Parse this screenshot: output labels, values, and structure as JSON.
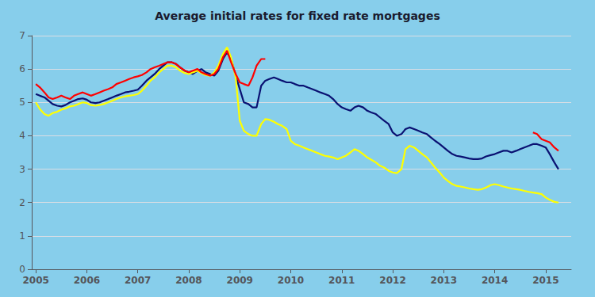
{
  "chart_data": {
    "type": "line",
    "title": "Average initial rates for fixed rate mortgages",
    "xlim": [
      2004.92,
      2015.5
    ],
    "xticks": [
      2005,
      2006,
      2007,
      2008,
      2009,
      2010,
      2011,
      2012,
      2013,
      2014,
      2015
    ],
    "ylim": [
      0,
      7
    ],
    "yticks": [
      0,
      1,
      2,
      3,
      4,
      5,
      6,
      7
    ],
    "grid": true,
    "series": [
      {
        "color": "#0a1172",
        "x": [
          2005.0,
          2005.08,
          2005.17,
          2005.25,
          2005.33,
          2005.42,
          2005.5,
          2005.58,
          2005.67,
          2005.75,
          2005.83,
          2005.92,
          2006.0,
          2006.08,
          2006.17,
          2006.25,
          2006.33,
          2006.42,
          2006.5,
          2006.58,
          2006.67,
          2006.75,
          2006.83,
          2006.92,
          2007.0,
          2007.08,
          2007.17,
          2007.25,
          2007.33,
          2007.42,
          2007.5,
          2007.58,
          2007.67,
          2007.75,
          2007.83,
          2007.92,
          2008.0,
          2008.08,
          2008.17,
          2008.25,
          2008.33,
          2008.42,
          2008.5,
          2008.58,
          2008.67,
          2008.75,
          2008.83,
          2008.92,
          2009.0,
          2009.08,
          2009.17,
          2009.25,
          2009.33,
          2009.42,
          2009.5,
          2009.58,
          2009.67,
          2009.75,
          2009.83,
          2009.92,
          2010.0,
          2010.08,
          2010.17,
          2010.25,
          2010.33,
          2010.42,
          2010.5,
          2010.58,
          2010.67,
          2010.75,
          2010.83,
          2010.92,
          2011.0,
          2011.08,
          2011.17,
          2011.25,
          2011.33,
          2011.42,
          2011.5,
          2011.58,
          2011.67,
          2011.75,
          2011.83,
          2011.92,
          2012.0,
          2012.08,
          2012.17,
          2012.25,
          2012.33,
          2012.42,
          2012.5,
          2012.58,
          2012.67,
          2012.75,
          2012.83,
          2012.92,
          2013.0,
          2013.08,
          2013.17,
          2013.25,
          2013.33,
          2013.42,
          2013.5,
          2013.58,
          2013.67,
          2013.75,
          2013.83,
          2013.92,
          2014.0,
          2014.08,
          2014.17,
          2014.25,
          2014.33,
          2014.42,
          2014.5,
          2014.58,
          2014.67,
          2014.75,
          2014.83,
          2014.92,
          2015.0,
          2015.08,
          2015.17,
          2015.25
        ],
        "values": [
          5.25,
          5.2,
          5.15,
          5.05,
          4.95,
          4.9,
          4.88,
          4.92,
          5.0,
          5.05,
          5.1,
          5.12,
          5.08,
          5.0,
          4.98,
          5.0,
          5.05,
          5.1,
          5.15,
          5.2,
          5.25,
          5.3,
          5.32,
          5.35,
          5.38,
          5.5,
          5.65,
          5.75,
          5.85,
          6.0,
          6.1,
          6.2,
          6.2,
          6.15,
          6.05,
          5.95,
          5.9,
          5.85,
          5.95,
          6.0,
          5.9,
          5.85,
          5.8,
          5.95,
          6.3,
          6.5,
          6.3,
          5.8,
          5.4,
          5.0,
          4.95,
          4.85,
          4.85,
          5.5,
          5.65,
          5.7,
          5.75,
          5.7,
          5.65,
          5.6,
          5.6,
          5.55,
          5.5,
          5.5,
          5.45,
          5.4,
          5.35,
          5.3,
          5.25,
          5.2,
          5.1,
          4.95,
          4.85,
          4.8,
          4.75,
          4.85,
          4.9,
          4.85,
          4.75,
          4.7,
          4.65,
          4.55,
          4.45,
          4.35,
          4.1,
          4.0,
          4.05,
          4.2,
          4.25,
          4.2,
          4.15,
          4.1,
          4.05,
          3.95,
          3.85,
          3.75,
          3.65,
          3.55,
          3.45,
          3.4,
          3.38,
          3.35,
          3.32,
          3.3,
          3.3,
          3.32,
          3.38,
          3.42,
          3.45,
          3.5,
          3.55,
          3.55,
          3.5,
          3.55,
          3.6,
          3.65,
          3.7,
          3.75,
          3.75,
          3.7,
          3.65,
          3.45,
          3.2,
          3.0
        ]
      },
      {
        "color": "#FFFF00",
        "x": [
          2005.0,
          2005.08,
          2005.17,
          2005.25,
          2005.33,
          2005.42,
          2005.5,
          2005.58,
          2005.67,
          2005.75,
          2005.83,
          2005.92,
          2006.0,
          2006.08,
          2006.17,
          2006.25,
          2006.33,
          2006.42,
          2006.5,
          2006.58,
          2006.67,
          2006.75,
          2006.83,
          2006.92,
          2007.0,
          2007.08,
          2007.17,
          2007.25,
          2007.33,
          2007.42,
          2007.5,
          2007.58,
          2007.67,
          2007.75,
          2007.83,
          2007.92,
          2008.0,
          2008.08,
          2008.17,
          2008.25,
          2008.33,
          2008.42,
          2008.5,
          2008.58,
          2008.67,
          2008.75,
          2008.83,
          2008.92,
          2009.0,
          2009.08,
          2009.17,
          2009.25,
          2009.33,
          2009.42,
          2009.5,
          2009.58,
          2009.67,
          2009.75,
          2009.83,
          2009.92,
          2010.0,
          2010.08,
          2010.17,
          2010.25,
          2010.33,
          2010.42,
          2010.5,
          2010.58,
          2010.67,
          2010.75,
          2010.83,
          2010.92,
          2011.0,
          2011.08,
          2011.17,
          2011.25,
          2011.33,
          2011.42,
          2011.5,
          2011.58,
          2011.67,
          2011.75,
          2011.83,
          2011.92,
          2012.0,
          2012.08,
          2012.17,
          2012.25,
          2012.33,
          2012.42,
          2012.5,
          2012.58,
          2012.67,
          2012.75,
          2012.83,
          2012.92,
          2013.0,
          2013.08,
          2013.17,
          2013.25,
          2013.33,
          2013.42,
          2013.5,
          2013.58,
          2013.67,
          2013.75,
          2013.83,
          2013.92,
          2014.0,
          2014.08,
          2014.17,
          2014.25,
          2014.33,
          2014.42,
          2014.5,
          2014.58,
          2014.67,
          2014.75,
          2014.83,
          2014.92,
          2015.0,
          2015.08,
          2015.17,
          2015.25
        ],
        "values": [
          5.0,
          4.8,
          4.65,
          4.6,
          4.68,
          4.72,
          4.78,
          4.82,
          4.88,
          4.9,
          4.95,
          5.0,
          4.98,
          4.92,
          4.9,
          4.92,
          4.95,
          5.0,
          5.05,
          5.1,
          5.15,
          5.18,
          5.2,
          5.22,
          5.25,
          5.35,
          5.5,
          5.65,
          5.75,
          5.9,
          6.0,
          6.1,
          6.1,
          6.05,
          5.95,
          5.88,
          5.85,
          5.9,
          5.95,
          5.88,
          5.82,
          5.8,
          5.9,
          6.1,
          6.45,
          6.65,
          6.35,
          5.75,
          4.45,
          4.15,
          4.05,
          4.0,
          4.0,
          4.35,
          4.5,
          4.48,
          4.42,
          4.35,
          4.3,
          4.2,
          3.85,
          3.75,
          3.7,
          3.65,
          3.6,
          3.55,
          3.5,
          3.45,
          3.4,
          3.38,
          3.35,
          3.3,
          3.35,
          3.4,
          3.5,
          3.6,
          3.55,
          3.45,
          3.35,
          3.28,
          3.2,
          3.1,
          3.05,
          2.95,
          2.9,
          2.88,
          3.0,
          3.6,
          3.7,
          3.65,
          3.55,
          3.45,
          3.35,
          3.2,
          3.05,
          2.9,
          2.75,
          2.65,
          2.55,
          2.5,
          2.48,
          2.45,
          2.42,
          2.4,
          2.38,
          2.4,
          2.45,
          2.52,
          2.55,
          2.52,
          2.48,
          2.45,
          2.42,
          2.4,
          2.38,
          2.35,
          2.32,
          2.3,
          2.28,
          2.25,
          2.15,
          2.08,
          2.02,
          2.0
        ]
      },
      {
        "color": "#FF0000",
        "x": [
          2005.0,
          2005.08,
          2005.17,
          2005.25,
          2005.33,
          2005.42,
          2005.5,
          2005.58,
          2005.67,
          2005.75,
          2005.83,
          2005.92,
          2006.0,
          2006.08,
          2006.17,
          2006.25,
          2006.33,
          2006.42,
          2006.5,
          2006.58,
          2006.67,
          2006.75,
          2006.83,
          2006.92,
          2007.0,
          2007.08,
          2007.17,
          2007.25,
          2007.33,
          2007.42,
          2007.5,
          2007.58,
          2007.67,
          2007.75,
          2007.83,
          2007.92,
          2008.0,
          2008.08,
          2008.17,
          2008.25,
          2008.33,
          2008.42,
          2008.5,
          2008.58,
          2008.67,
          2008.75,
          2008.83,
          2008.92,
          2009.0,
          2009.08,
          2009.17,
          2009.25,
          2009.33,
          2009.42,
          2009.5
        ],
        "values": [
          5.55,
          5.45,
          5.3,
          5.15,
          5.1,
          5.15,
          5.2,
          5.15,
          5.1,
          5.2,
          5.25,
          5.3,
          5.25,
          5.2,
          5.25,
          5.3,
          5.35,
          5.4,
          5.45,
          5.55,
          5.6,
          5.65,
          5.7,
          5.75,
          5.78,
          5.82,
          5.9,
          6.0,
          6.05,
          6.1,
          6.15,
          6.2,
          6.2,
          6.15,
          6.05,
          5.95,
          5.9,
          5.95,
          6.0,
          5.9,
          5.85,
          5.8,
          5.85,
          6.0,
          6.35,
          6.55,
          6.2,
          5.85,
          5.6,
          5.55,
          5.5,
          5.75,
          6.1,
          6.3,
          6.3
        ]
      },
      {
        "color": "#FF0000",
        "x": [
          2014.75,
          2014.83,
          2014.92,
          2015.0,
          2015.08,
          2015.17,
          2015.25
        ],
        "values": [
          4.1,
          4.05,
          3.9,
          3.85,
          3.8,
          3.65,
          3.55
        ]
      }
    ]
  }
}
